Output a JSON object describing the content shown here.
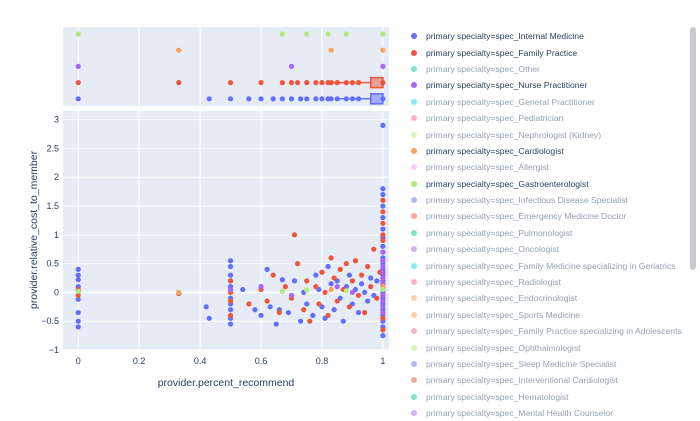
{
  "chart_data": {
    "type": "scatter",
    "xlabel": "provider.percent_recommend",
    "ylabel": "provider.relative_cost_to_member",
    "xlim": [
      -0.05,
      1.02
    ],
    "ylim": [
      -1,
      3.15
    ],
    "x_ticks": [
      0,
      0.2,
      0.4,
      0.6,
      0.8,
      1
    ],
    "x_tick_labels": [
      "0",
      "0.2",
      "0.4",
      "0.6",
      "0.8",
      "1"
    ],
    "y_ticks": [
      -1,
      -0.5,
      0,
      0.5,
      1,
      1.5,
      2,
      2.5,
      3
    ],
    "y_tick_labels": [
      "−1",
      "−0.5",
      "0",
      "0.5",
      "1",
      "1.5",
      "2",
      "2.5",
      "3"
    ],
    "marginal": "rug/box (top)",
    "legend_position": "right",
    "series": [
      {
        "name": "primary specialty=spec_Internal Medicine",
        "color": "#636efa",
        "visible": true,
        "points": [
          [
            0,
            0.4
          ],
          [
            0,
            0.3
          ],
          [
            0,
            0.22
          ],
          [
            0,
            0.1
          ],
          [
            0,
            0.02
          ],
          [
            0,
            -0.12
          ],
          [
            0,
            -0.35
          ],
          [
            0,
            -0.5
          ],
          [
            0,
            -0.6
          ],
          [
            0.42,
            -0.25
          ],
          [
            0.43,
            -0.45
          ],
          [
            0.5,
            0.55
          ],
          [
            0.5,
            0.45
          ],
          [
            0.5,
            0.3
          ],
          [
            0.5,
            0.2
          ],
          [
            0.5,
            0.1
          ],
          [
            0.5,
            -0.1
          ],
          [
            0.5,
            -0.2
          ],
          [
            0.5,
            -0.3
          ],
          [
            0.5,
            -0.45
          ],
          [
            0.5,
            -0.55
          ],
          [
            0.54,
            0.05
          ],
          [
            0.58,
            -0.3
          ],
          [
            0.6,
            -0.4
          ],
          [
            0.62,
            0.4
          ],
          [
            0.63,
            -0.25
          ],
          [
            0.65,
            -0.55
          ],
          [
            0.66,
            -0.3
          ],
          [
            0.67,
            0.22
          ],
          [
            0.69,
            -0.35
          ],
          [
            0.71,
            0.2
          ],
          [
            0.73,
            -0.5
          ],
          [
            0.74,
            0.0
          ],
          [
            0.75,
            -0.2
          ],
          [
            0.77,
            -0.4
          ],
          [
            0.78,
            0.3
          ],
          [
            0.79,
            0.05
          ],
          [
            0.8,
            -0.25
          ],
          [
            0.81,
            -0.45
          ],
          [
            0.82,
            0.45
          ],
          [
            0.83,
            0.15
          ],
          [
            0.84,
            -0.3
          ],
          [
            0.85,
            0.2
          ],
          [
            0.86,
            -0.1
          ],
          [
            0.87,
            -0.5
          ],
          [
            0.88,
            0.1
          ],
          [
            0.89,
            0.3
          ],
          [
            0.9,
            -0.2
          ],
          [
            0.91,
            0.05
          ],
          [
            0.92,
            -0.35
          ],
          [
            0.93,
            0.15
          ],
          [
            0.94,
            0.0
          ],
          [
            0.95,
            -0.15
          ],
          [
            0.96,
            0.25
          ],
          [
            0.97,
            -0.05
          ],
          [
            0.98,
            0.2
          ],
          [
            1,
            2.9
          ],
          [
            1,
            1.8
          ],
          [
            1,
            1.7
          ],
          [
            1,
            1.5
          ],
          [
            1,
            1.3
          ],
          [
            1,
            1.1
          ],
          [
            1,
            0.95
          ],
          [
            1,
            0.8
          ],
          [
            1,
            0.6
          ],
          [
            1,
            0.5
          ],
          [
            1,
            0.4
          ],
          [
            1,
            0.3
          ],
          [
            1,
            0.2
          ],
          [
            1,
            0.1
          ],
          [
            1,
            0.0
          ],
          [
            1,
            -0.1
          ],
          [
            1,
            -0.2
          ],
          [
            1,
            -0.3
          ],
          [
            1,
            -0.4
          ],
          [
            1,
            -0.5
          ],
          [
            1,
            -0.6
          ],
          [
            1,
            -0.75
          ]
        ]
      },
      {
        "name": "primary specialty=spec_Family Practice",
        "color": "#ef553b",
        "visible": true,
        "points": [
          [
            0,
            0.05
          ],
          [
            0,
            -0.05
          ],
          [
            0.33,
            -0.02
          ],
          [
            0.5,
            0.2
          ],
          [
            0.5,
            0.0
          ],
          [
            0.5,
            -0.15
          ],
          [
            0.5,
            -0.4
          ],
          [
            0.56,
            -0.2
          ],
          [
            0.6,
            0.05
          ],
          [
            0.62,
            -0.15
          ],
          [
            0.64,
            0.3
          ],
          [
            0.66,
            -0.35
          ],
          [
            0.68,
            0.1
          ],
          [
            0.7,
            -0.1
          ],
          [
            0.71,
            1.0
          ],
          [
            0.72,
            0.5
          ],
          [
            0.74,
            -0.3
          ],
          [
            0.75,
            0.2
          ],
          [
            0.76,
            -0.5
          ],
          [
            0.78,
            0.1
          ],
          [
            0.79,
            -0.2
          ],
          [
            0.8,
            0.35
          ],
          [
            0.81,
            0.0
          ],
          [
            0.82,
            -0.4
          ],
          [
            0.83,
            0.6
          ],
          [
            0.84,
            0.25
          ],
          [
            0.85,
            -0.15
          ],
          [
            0.86,
            0.4
          ],
          [
            0.87,
            0.05
          ],
          [
            0.88,
            0.5
          ],
          [
            0.89,
            -0.25
          ],
          [
            0.9,
            0.2
          ],
          [
            0.91,
            0.55
          ],
          [
            0.92,
            -0.05
          ],
          [
            0.93,
            0.3
          ],
          [
            0.94,
            -0.35
          ],
          [
            0.95,
            0.45
          ],
          [
            0.96,
            0.1
          ],
          [
            0.97,
            0.75
          ],
          [
            0.98,
            -0.1
          ],
          [
            0.99,
            0.35
          ],
          [
            1,
            1.6
          ],
          [
            1,
            1.4
          ],
          [
            1,
            1.2
          ],
          [
            1,
            1.0
          ],
          [
            1,
            0.9
          ],
          [
            1,
            0.7
          ],
          [
            1,
            0.55
          ],
          [
            1,
            0.35
          ],
          [
            1,
            0.15
          ],
          [
            1,
            -0.05
          ],
          [
            1,
            -0.25
          ],
          [
            1,
            -0.45
          ],
          [
            1,
            -0.65
          ]
        ]
      },
      {
        "name": "primary specialty=spec_Other",
        "color": "#00cc96",
        "visible": false,
        "points": []
      },
      {
        "name": "primary specialty=spec_Nurse Practitioner",
        "color": "#ab63fa",
        "visible": true,
        "points": [
          [
            0.5,
            0.05
          ],
          [
            0.6,
            0.1
          ],
          [
            0.7,
            -0.05
          ],
          [
            0.85,
            0.1
          ],
          [
            0.9,
            0.0
          ],
          [
            1,
            0.7
          ],
          [
            1,
            0.55
          ],
          [
            1,
            0.45
          ],
          [
            1,
            0.35
          ],
          [
            1,
            0.25
          ],
          [
            1,
            0.15
          ],
          [
            1,
            0.05
          ],
          [
            1,
            -0.05
          ],
          [
            1,
            -0.15
          ],
          [
            1,
            -0.25
          ],
          [
            1,
            -0.35
          ]
        ]
      },
      {
        "name": "primary specialty=spec_General Practitioner",
        "color": "#19d3f3",
        "visible": false,
        "points": []
      },
      {
        "name": "primary specialty=spec_Pediatrician",
        "color": "#ff6692",
        "visible": false,
        "points": []
      },
      {
        "name": "primary specialty=spec_Nephrologist (Kidney)",
        "color": "#b6e880",
        "visible": false,
        "points": []
      },
      {
        "name": "primary specialty=spec_Cardiologist",
        "color": "#ffa15a",
        "visible": true,
        "points": [
          [
            0.33,
            0.0
          ],
          [
            0.83,
            0.05
          ],
          [
            1,
            0.1
          ]
        ]
      },
      {
        "name": "primary specialty=spec_Allergist",
        "color": "#ff97ff",
        "visible": false,
        "points": []
      },
      {
        "name": "primary specialty=spec_Gastroenterologist",
        "color": "#b6e880",
        "visible": true,
        "points": [
          [
            0,
            0.02
          ],
          [
            0.67,
            0.02
          ],
          [
            0.75,
            0.04
          ],
          [
            0.88,
            0.03
          ],
          [
            1,
            0.05
          ]
        ]
      },
      {
        "name": "primary specialty=spec_Infectious Disease Specialist",
        "color": "#636efa",
        "visible": false,
        "points": []
      },
      {
        "name": "primary specialty=spec_Emergency Medicine Doctor",
        "color": "#ef553b",
        "visible": false,
        "points": []
      },
      {
        "name": "primary specialty=spec_Pulmonologist",
        "color": "#00cc96",
        "visible": false,
        "points": []
      },
      {
        "name": "primary specialty=spec_Oncologist",
        "color": "#ab63fa",
        "visible": false,
        "points": []
      },
      {
        "name": "primary specialty=spec_Family Medicine specializing in Geriatrics",
        "color": "#19d3f3",
        "visible": false,
        "points": []
      },
      {
        "name": "primary specialty=spec_Radiologist",
        "color": "#ff6692",
        "visible": false,
        "points": []
      },
      {
        "name": "primary specialty=spec_Endocrinologist",
        "color": "#ffa15a",
        "visible": false,
        "points": []
      },
      {
        "name": "primary specialty=spec_Sports Medicine",
        "color": "#ffa15a",
        "visible": false,
        "points": []
      },
      {
        "name": "primary specialty=spec_Family Practice specializing in Adolescents",
        "color": "#ff6692",
        "visible": false,
        "points": []
      },
      {
        "name": "primary specialty=spec_Ophthalmologist",
        "color": "#b6e880",
        "visible": false,
        "points": []
      },
      {
        "name": "primary specialty=spec_Sleep Medicine Specialist",
        "color": "#636efa",
        "visible": false,
        "points": []
      },
      {
        "name": "primary specialty=spec_Interventional Cardiologist",
        "color": "#ef553b",
        "visible": false,
        "points": []
      },
      {
        "name": "primary specialty=spec_Hematologist",
        "color": "#00cc96",
        "visible": false,
        "points": []
      },
      {
        "name": "primary specialty=spec_Mental Health Counselor",
        "color": "#ab63fa",
        "visible": false,
        "points": []
      }
    ],
    "rug_rows": [
      {
        "name": "primary specialty=spec_Gastroenterologist",
        "color": "#b6e880",
        "x": [
          0,
          0.67,
          0.75,
          0.82,
          0.88,
          1
        ]
      },
      {
        "name": "primary specialty=spec_Cardiologist",
        "color": "#ffa15a",
        "x": [
          0.33,
          0.83,
          1
        ]
      },
      {
        "name": "primary specialty=spec_Nurse Practitioner",
        "color": "#ab63fa",
        "x": [
          0,
          0.7,
          1
        ]
      },
      {
        "name": "primary specialty=spec_Family Practice",
        "color": "#ef553b",
        "x": [
          0,
          0.33,
          0.5,
          0.6,
          0.67,
          0.7,
          0.72,
          0.75,
          0.78,
          0.8,
          0.82,
          0.83,
          0.85,
          0.88,
          0.9,
          0.92,
          1
        ]
      },
      {
        "name": "primary specialty=spec_Internal Medicine",
        "color": "#636efa",
        "x": [
          0,
          0.43,
          0.5,
          0.56,
          0.6,
          0.64,
          0.67,
          0.7,
          0.73,
          0.75,
          0.78,
          0.8,
          0.82,
          0.83,
          0.85,
          0.88,
          0.9,
          0.92,
          1
        ]
      }
    ],
    "boxes": [
      {
        "name": "primary specialty=spec_Family Practice",
        "color": "#ef553b",
        "q1": 0.96,
        "q3": 1,
        "whisker_low": 0.83,
        "whisker_high": 1
      },
      {
        "name": "primary specialty=spec_Internal Medicine",
        "color": "#636efa",
        "q1": 0.96,
        "q3": 1,
        "whisker_low": 0.85,
        "whisker_high": 1
      }
    ]
  }
}
